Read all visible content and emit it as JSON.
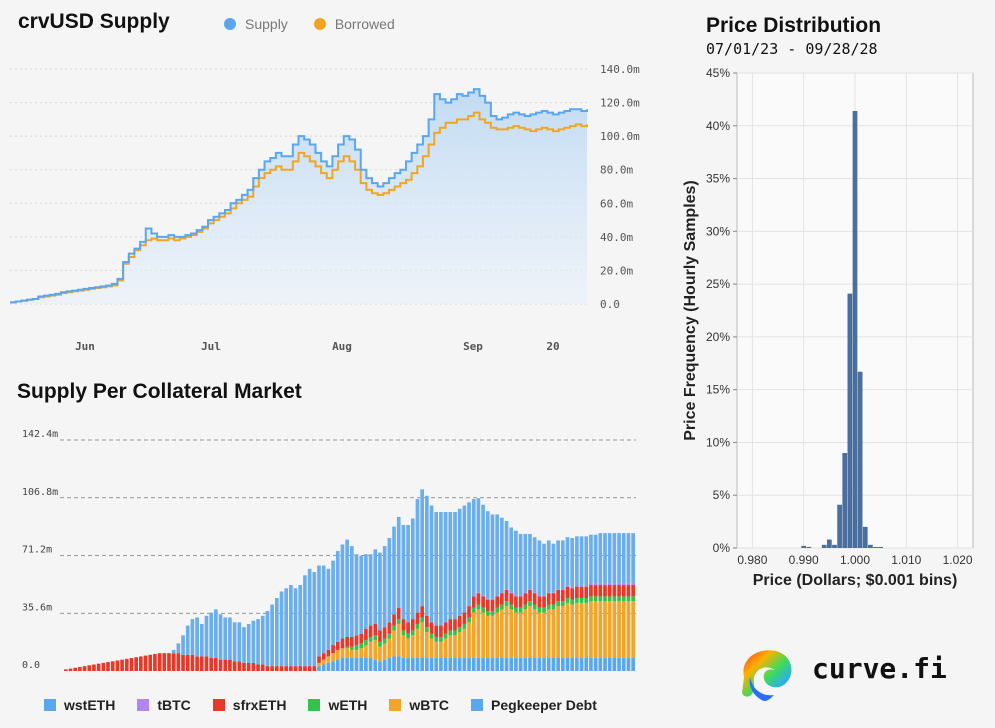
{
  "supply_panel": {
    "title": "crvUSD Supply",
    "legend": [
      {
        "label": "Supply",
        "color": "#5aa7ee"
      },
      {
        "label": "Borrowed",
        "color": "#f0a623"
      }
    ]
  },
  "collateral_panel": {
    "title": "Supply Per Collateral Market",
    "legend": [
      {
        "label": "wstETH",
        "color": "#5aa7ee"
      },
      {
        "label": "tBTC",
        "color": "#b286f0"
      },
      {
        "label": "sfrxETH",
        "color": "#e8382a"
      },
      {
        "label": "wETH",
        "color": "#33c24a"
      },
      {
        "label": "wBTC",
        "color": "#f2a628"
      },
      {
        "label": "Pegkeeper Debt",
        "color": "#5aa7ee"
      }
    ]
  },
  "price_panel": {
    "title": "Price Distribution",
    "subtitle": "07/01/23 - 09/28/28"
  },
  "brand": {
    "text": "curve.fi"
  },
  "chart_data": [
    {
      "type": "line",
      "title": "crvUSD Supply",
      "x_ticks": [
        "Jun",
        "Jul",
        "Aug",
        "Sep",
        "20"
      ],
      "y_ticks": [
        "0.0",
        "20.0m",
        "40.0m",
        "60.0m",
        "80.0m",
        "100.0m",
        "120.0m",
        "140.0m"
      ],
      "ylim": [
        0,
        140
      ],
      "series": [
        {
          "name": "Supply",
          "color": "#5aa7ee",
          "values": [
            1,
            1.5,
            2,
            2.5,
            3,
            4.5,
            5,
            5.5,
            6,
            7,
            7.5,
            8,
            8.5,
            9,
            9.5,
            10,
            10.5,
            11,
            12,
            15,
            25,
            30,
            33,
            37,
            45,
            42,
            40,
            40,
            41,
            40,
            40,
            41,
            42,
            44,
            46,
            50,
            52,
            54,
            56,
            60,
            62,
            65,
            68,
            75,
            80,
            85,
            87,
            90,
            88,
            88,
            95,
            100,
            98,
            95,
            90,
            85,
            82,
            88,
            95,
            100,
            98,
            92,
            80,
            75,
            72,
            70,
            72,
            75,
            78,
            80,
            85,
            90,
            95,
            100,
            110,
            125,
            122,
            120,
            122,
            125,
            124,
            126,
            128,
            124,
            120,
            112,
            110,
            111,
            113,
            114,
            113,
            112,
            113,
            114,
            115,
            114,
            113,
            114,
            115,
            116,
            116,
            115,
            116
          ],
          "y_unit": "m"
        },
        {
          "name": "Borrowed",
          "color": "#f0a623",
          "values": [
            1,
            1.5,
            2,
            2.5,
            3,
            4,
            4.5,
            5,
            5.5,
            6.5,
            7,
            7.5,
            8,
            8.5,
            9,
            9.5,
            10,
            10.5,
            11,
            14,
            24,
            28,
            32,
            35,
            38,
            39,
            38,
            38,
            39,
            38,
            39,
            40,
            41,
            43,
            45,
            48,
            50,
            52,
            54,
            57,
            60,
            62,
            64,
            70,
            75,
            78,
            80,
            82,
            80,
            80,
            85,
            90,
            88,
            85,
            82,
            78,
            75,
            80,
            85,
            88,
            85,
            80,
            72,
            68,
            66,
            65,
            66,
            68,
            70,
            72,
            74,
            78,
            82,
            88,
            95,
            102,
            105,
            108,
            108,
            110,
            110,
            112,
            114,
            110,
            108,
            105,
            104,
            104,
            105,
            106,
            105,
            104,
            103,
            104,
            105,
            104,
            103,
            104,
            105,
            106,
            107,
            106,
            107
          ],
          "y_unit": "m"
        }
      ]
    },
    {
      "type": "bar",
      "title": "Supply Per Collateral Market",
      "stacked": true,
      "y_ticks": [
        "0.0",
        "35.6m",
        "71.2m",
        "106.8m",
        "142.4m"
      ],
      "ylim": [
        0,
        142.4
      ],
      "series_order": [
        "wstETH",
        "wBTC",
        "wETH",
        "sfrxETH",
        "tBTC",
        "Pegkeeper Debt"
      ],
      "series": [
        {
          "name": "wstETH",
          "values": [
            0,
            0,
            0,
            0,
            0,
            0,
            0,
            0,
            0,
            0,
            0,
            0,
            0,
            0,
            0,
            0,
            0,
            0,
            0,
            0,
            0,
            0,
            0,
            0,
            0,
            0,
            0,
            0,
            0,
            0,
            0,
            0,
            0,
            0,
            0,
            0,
            0,
            0,
            0,
            0,
            0,
            0,
            0,
            0,
            0,
            0,
            0,
            0,
            0,
            0,
            0,
            0,
            0,
            0,
            3,
            4,
            5,
            6,
            7,
            8,
            8,
            8,
            8,
            8,
            8,
            8,
            7,
            6,
            7,
            8,
            9,
            9,
            8,
            8,
            8,
            8,
            8,
            8,
            8,
            8,
            8,
            8,
            8,
            8,
            8,
            8,
            8,
            8,
            8,
            8,
            8,
            8,
            8,
            8,
            8,
            8,
            8,
            8,
            8,
            8,
            8,
            8,
            8,
            8,
            8,
            8,
            8,
            8,
            8,
            8,
            8,
            8,
            8,
            8,
            8,
            8,
            8,
            8,
            8,
            8,
            8,
            8
          ]
        },
        {
          "name": "wBTC",
          "values": [
            0,
            0,
            0,
            0,
            0,
            0,
            0,
            0,
            0,
            0,
            0,
            0,
            0,
            0,
            0,
            0,
            0,
            0,
            0,
            0,
            0,
            0,
            0,
            0,
            0,
            0,
            0,
            0,
            0,
            0,
            0,
            0,
            0,
            0,
            0,
            0,
            0,
            0,
            0,
            0,
            0,
            0,
            0,
            0,
            0,
            0,
            0,
            0,
            0,
            0,
            0,
            0,
            0,
            0,
            2,
            3,
            4,
            5,
            6,
            6,
            6,
            5,
            5,
            6,
            8,
            10,
            12,
            9,
            10,
            12,
            16,
            20,
            14,
            12,
            14,
            18,
            22,
            16,
            12,
            10,
            10,
            12,
            14,
            14,
            16,
            18,
            22,
            28,
            30,
            28,
            26,
            26,
            28,
            30,
            32,
            30,
            28,
            28,
            30,
            32,
            30,
            28,
            28,
            30,
            30,
            32,
            32,
            34,
            33,
            34,
            34,
            34,
            35,
            35,
            35,
            35,
            35,
            35,
            35,
            35,
            35,
            35
          ]
        },
        {
          "name": "wETH",
          "values": [
            0,
            0,
            0,
            0,
            0,
            0,
            0,
            0,
            0,
            0,
            0,
            0,
            0,
            0,
            0,
            0,
            0,
            0,
            0,
            0,
            0,
            0,
            0,
            0,
            0,
            0,
            0,
            0,
            0,
            0,
            0,
            0,
            0,
            0,
            0,
            0,
            0,
            0,
            0,
            0,
            0,
            0,
            0,
            0,
            0,
            0,
            0,
            0,
            0,
            0,
            0,
            0,
            0,
            0,
            0,
            0,
            0,
            0,
            0,
            0,
            1,
            2,
            3,
            3,
            3,
            3,
            3,
            3,
            3,
            3,
            3,
            3,
            3,
            3,
            3,
            3,
            3,
            3,
            3,
            3,
            3,
            3,
            3,
            3,
            3,
            3,
            3,
            3,
            3,
            3,
            3,
            3,
            3,
            3,
            3,
            3,
            3,
            3,
            3,
            3,
            3,
            3,
            3,
            3,
            3,
            3,
            3,
            3,
            3,
            3,
            3,
            3,
            3,
            3,
            3,
            3,
            3,
            3,
            3,
            3,
            3,
            3,
            3,
            3
          ]
        },
        {
          "name": "sfrxETH",
          "values": [
            1,
            1.5,
            2,
            2.5,
            3,
            3.5,
            4,
            4.5,
            5,
            5.5,
            6,
            6.5,
            7,
            7.5,
            8,
            8.5,
            9,
            9.5,
            10,
            10.5,
            11,
            11,
            11,
            11,
            11,
            10,
            10,
            10,
            9,
            9,
            9,
            8,
            8,
            7,
            7,
            7,
            6,
            6,
            5,
            5,
            5,
            4,
            4,
            3,
            3,
            3,
            3,
            3,
            3,
            3,
            3,
            3,
            3,
            3,
            4,
            4,
            4,
            5,
            5,
            6,
            6,
            6,
            6,
            6,
            7,
            7,
            7,
            7,
            7,
            7,
            7,
            7,
            7,
            7,
            7,
            7,
            7,
            7,
            7,
            7,
            7,
            7,
            7,
            7,
            7,
            7,
            7,
            7,
            7,
            7,
            7,
            7,
            7,
            7,
            7,
            7,
            7,
            7,
            7,
            7,
            7,
            7,
            7,
            7,
            7,
            7,
            7,
            7,
            7,
            7,
            7,
            7,
            7,
            7,
            7,
            7,
            7,
            7,
            7,
            7,
            7,
            7
          ]
        },
        {
          "name": "tBTC",
          "values": [
            0,
            0,
            0,
            0,
            0,
            0,
            0,
            0,
            0,
            0,
            0,
            0,
            0,
            0,
            0,
            0,
            0,
            0,
            0,
            0,
            0,
            0,
            0,
            0,
            0,
            0,
            0,
            0,
            0,
            0,
            0,
            0,
            0,
            0,
            0,
            0,
            0,
            0,
            0,
            0,
            0,
            0,
            0,
            0,
            0,
            0,
            0,
            0,
            0,
            0,
            0,
            0,
            0,
            0,
            0,
            0,
            0,
            0,
            0,
            0,
            0,
            0,
            0,
            0,
            0,
            0,
            0,
            0,
            0,
            0,
            0,
            0,
            0,
            0,
            0,
            0,
            0,
            0,
            0,
            0,
            0,
            0,
            0,
            0,
            0,
            0,
            0,
            0,
            0.5,
            0.5,
            0.5,
            0.5,
            0.5,
            0.5,
            0.5,
            0.5,
            0.5,
            0.5,
            0.5,
            0.5,
            0.5,
            0.5,
            0.5,
            0.5,
            0.5,
            0.5,
            0.5,
            0.5,
            1,
            1,
            1,
            1,
            1,
            1,
            1,
            1,
            1,
            1,
            1,
            1,
            1,
            1,
            1,
            1,
            1,
            1
          ]
        },
        {
          "name": "Pegkeeper Debt",
          "values": [
            0,
            0,
            0,
            0,
            0,
            0,
            0,
            0,
            0,
            0,
            0,
            0,
            0,
            0,
            0,
            0,
            0,
            0,
            0,
            0,
            0,
            0,
            0,
            2,
            6,
            12,
            18,
            22,
            24,
            20,
            25,
            28,
            30,
            28,
            26,
            26,
            24,
            24,
            22,
            24,
            26,
            28,
            30,
            34,
            38,
            42,
            46,
            48,
            50,
            48,
            50,
            56,
            60,
            58,
            56,
            54,
            50,
            52,
            56,
            58,
            60,
            56,
            50,
            48,
            46,
            44,
            46,
            48,
            50,
            52,
            54,
            56,
            58,
            60,
            62,
            70,
            72,
            74,
            72,
            70,
            70,
            68,
            66,
            66,
            66,
            66,
            64,
            60,
            58,
            56,
            54,
            52,
            50,
            46,
            42,
            40,
            40,
            38,
            36,
            34,
            34,
            34,
            32,
            32,
            30,
            30,
            30,
            30,
            30,
            30,
            30,
            30,
            30,
            30,
            31,
            31,
            31,
            31,
            31,
            31,
            31,
            31
          ]
        }
      ]
    },
    {
      "type": "bar",
      "title": "Price Distribution",
      "xlabel": "Price (Dollars; $0.001 bins)",
      "ylabel": "Price Frequency (Hourly Samples)",
      "x_ticks": [
        "0.980",
        "0.990",
        "1.000",
        "1.010",
        "1.020"
      ],
      "y_ticks": [
        "0%",
        "5%",
        "10%",
        "15%",
        "20%",
        "25%",
        "30%",
        "35%",
        "40%",
        "45%"
      ],
      "xlim": [
        0.977,
        1.023
      ],
      "ylim": [
        0,
        45
      ],
      "bins": [
        0.99,
        0.991,
        0.994,
        0.995,
        0.996,
        0.997,
        0.998,
        0.999,
        1.0,
        1.001,
        1.002,
        1.003,
        1.004,
        1.005
      ],
      "values": [
        0.2,
        0.1,
        0.3,
        0.8,
        0.3,
        4.1,
        9.0,
        24.1,
        41.4,
        16.7,
        2.0,
        0.3,
        0.1,
        0.1
      ],
      "color": "#4a6f9e"
    }
  ]
}
